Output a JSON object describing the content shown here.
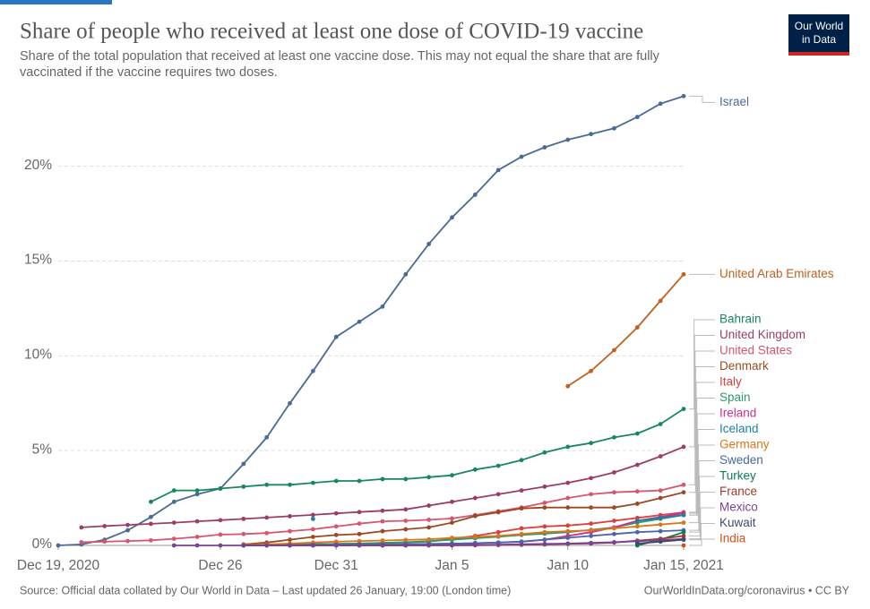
{
  "chart_data": {
    "type": "line",
    "title": "Share of people who received at least one dose of COVID-19 vaccine",
    "subtitle": [
      "Share of the total population that received at least one vaccine dose. This may not equal the share that are fully",
      "vaccinated if the vaccine requires two doses."
    ],
    "logo": [
      "Our World",
      "in Data"
    ],
    "source": "Source: Official data collated by Our World in Data – Last updated 26 January, 19:00 (London time)",
    "credit": "OurWorldInData.org/coronavirus • CC BY",
    "x": [
      "2020-12-19",
      "2020-12-20",
      "2020-12-21",
      "2020-12-22",
      "2020-12-23",
      "2020-12-24",
      "2020-12-25",
      "2020-12-26",
      "2020-12-27",
      "2020-12-28",
      "2020-12-29",
      "2020-12-30",
      "2020-12-31",
      "2021-01-01",
      "2021-01-02",
      "2021-01-03",
      "2021-01-04",
      "2021-01-05",
      "2021-01-06",
      "2021-01-07",
      "2021-01-08",
      "2021-01-09",
      "2021-01-10",
      "2021-01-11",
      "2021-01-12",
      "2021-01-13",
      "2021-01-14",
      "2021-01-15"
    ],
    "xlim": [
      "2020-12-19",
      "2021-01-15"
    ],
    "xticks": [
      {
        "value": "2020-12-19",
        "label": "Dec 19, 2020"
      },
      {
        "value": "2020-12-26",
        "label": "Dec 26"
      },
      {
        "value": "2020-12-31",
        "label": "Dec 31"
      },
      {
        "value": "2021-01-05",
        "label": "Jan 5"
      },
      {
        "value": "2021-01-10",
        "label": "Jan 10"
      },
      {
        "value": "2021-01-15",
        "label": "Jan 15, 2021"
      }
    ],
    "ylim": [
      0,
      24
    ],
    "yticks": [
      {
        "value": 0,
        "label": "0%"
      },
      {
        "value": 5,
        "label": "5%"
      },
      {
        "value": 10,
        "label": "10%"
      },
      {
        "value": 15,
        "label": "15%"
      },
      {
        "value": 20,
        "label": "20%"
      }
    ],
    "grid": true,
    "series": [
      {
        "name": "Israel",
        "color": "#4a6a96",
        "values": [
          0,
          0.05,
          0.3,
          0.8,
          1.5,
          2.3,
          2.7,
          3.0,
          4.3,
          5.7,
          7.5,
          9.2,
          11.0,
          11.8,
          12.6,
          14.3,
          15.9,
          17.3,
          18.5,
          19.8,
          20.5,
          21.0,
          21.4,
          21.7,
          22.0,
          22.6,
          23.3,
          23.7
        ]
      },
      {
        "name": "United Arab Emirates",
        "color": "#bf6120",
        "values": [
          null,
          null,
          null,
          null,
          null,
          null,
          null,
          null,
          null,
          null,
          null,
          null,
          null,
          null,
          null,
          null,
          null,
          null,
          null,
          null,
          null,
          null,
          8.4,
          9.2,
          10.3,
          11.5,
          12.9,
          14.3
        ]
      },
      {
        "name": "Bahrain",
        "color": "#18875f",
        "values": [
          null,
          null,
          null,
          null,
          2.3,
          2.9,
          2.9,
          3.0,
          3.1,
          3.2,
          3.2,
          3.3,
          3.4,
          3.4,
          3.5,
          3.5,
          3.6,
          3.7,
          4.0,
          4.2,
          4.5,
          4.9,
          5.2,
          5.4,
          5.7,
          5.9,
          6.4,
          7.2
        ]
      },
      {
        "name": "United Kingdom",
        "color": "#993f67",
        "values": [
          null,
          0.95,
          1.02,
          1.08,
          1.14,
          1.2,
          1.27,
          1.33,
          1.4,
          1.47,
          1.54,
          1.61,
          1.69,
          1.76,
          1.83,
          1.9,
          2.1,
          2.3,
          2.5,
          2.7,
          2.9,
          3.1,
          3.3,
          3.55,
          3.85,
          4.25,
          4.7,
          5.2
        ]
      },
      {
        "name": "United States",
        "color": "#d5566f",
        "values": [
          null,
          0.17,
          0.2,
          0.23,
          0.27,
          0.35,
          0.45,
          0.57,
          0.6,
          0.65,
          0.75,
          0.85,
          1.0,
          1.15,
          1.27,
          1.3,
          1.35,
          1.42,
          1.6,
          1.8,
          2.0,
          2.25,
          2.5,
          2.7,
          2.8,
          2.85,
          2.9,
          3.2
        ]
      },
      {
        "name": "Denmark",
        "color": "#9a4a22",
        "values": [
          null,
          null,
          null,
          null,
          null,
          null,
          null,
          null,
          0.05,
          0.15,
          0.3,
          0.45,
          0.55,
          0.6,
          0.75,
          0.85,
          0.95,
          1.2,
          1.55,
          1.75,
          1.95,
          2.0,
          2.0,
          2.0,
          2.0,
          2.2,
          2.5,
          2.8
        ]
      },
      {
        "name": "Italy",
        "color": "#d9413f",
        "values": [
          null,
          null,
          null,
          null,
          null,
          null,
          null,
          null,
          0.0,
          0.02,
          0.04,
          0.06,
          0.08,
          0.1,
          0.13,
          0.16,
          0.2,
          0.35,
          0.5,
          0.7,
          0.9,
          1.0,
          1.05,
          1.15,
          1.3,
          1.45,
          1.6,
          1.75
        ]
      },
      {
        "name": "Spain",
        "color": "#2a9a6a",
        "values": [
          null,
          null,
          null,
          null,
          null,
          null,
          null,
          null,
          0.0,
          0.02,
          0.04,
          0.06,
          0.08,
          0.1,
          0.13,
          0.17,
          0.22,
          0.3,
          0.38,
          0.46,
          0.55,
          0.62,
          0.7,
          0.82,
          0.95,
          1.2,
          1.4,
          1.6
        ]
      },
      {
        "name": "Ireland",
        "color": "#cc2e8e",
        "values": [
          null,
          null,
          null,
          null,
          null,
          null,
          null,
          null,
          null,
          null,
          0.0,
          0.01,
          0.02,
          0.03,
          0.04,
          0.05,
          0.07,
          0.09,
          0.12,
          0.15,
          0.2,
          0.3,
          0.5,
          0.7,
          0.95,
          1.3,
          1.5,
          1.7
        ]
      },
      {
        "name": "Iceland",
        "color": "#1f7fa0",
        "values": [
          null,
          null,
          null,
          null,
          null,
          null,
          null,
          null,
          null,
          null,
          null,
          1.4,
          null,
          null,
          null,
          null,
          null,
          null,
          null,
          null,
          null,
          null,
          null,
          null,
          null,
          1.3,
          1.45,
          1.6
        ]
      },
      {
        "name": "Germany",
        "color": "#d9761c",
        "values": [
          null,
          null,
          null,
          null,
          null,
          null,
          null,
          null,
          0.02,
          0.05,
          0.1,
          0.15,
          0.2,
          0.23,
          0.26,
          0.29,
          0.32,
          0.4,
          0.45,
          0.5,
          0.6,
          0.7,
          0.75,
          0.8,
          0.9,
          1.0,
          1.1,
          1.2
        ]
      },
      {
        "name": "Sweden",
        "color": "#4a66a6",
        "values": [
          null,
          null,
          null,
          null,
          null,
          null,
          null,
          null,
          0.0,
          0.01,
          0.02,
          0.03,
          0.04,
          0.05,
          0.06,
          0.07,
          0.08,
          0.1,
          0.12,
          0.15,
          0.2,
          0.3,
          0.4,
          0.5,
          0.6,
          0.7,
          0.75,
          0.8
        ]
      },
      {
        "name": "Turkey",
        "color": "#127a50",
        "values": [
          null,
          null,
          null,
          null,
          null,
          null,
          null,
          null,
          null,
          null,
          null,
          null,
          null,
          null,
          null,
          null,
          null,
          null,
          null,
          null,
          null,
          null,
          null,
          null,
          null,
          0.0,
          0.3,
          0.7
        ]
      },
      {
        "name": "France",
        "color": "#a23a2a",
        "values": [
          null,
          null,
          null,
          null,
          null,
          null,
          null,
          null,
          0,
          0,
          0,
          0,
          0,
          0,
          0,
          0,
          0,
          0,
          0.01,
          0.02,
          0.03,
          0.05,
          0.08,
          0.1,
          0.15,
          0.25,
          0.35,
          0.5
        ]
      },
      {
        "name": "Mexico",
        "color": "#7a4296",
        "values": [
          null,
          null,
          null,
          null,
          null,
          0,
          0,
          0,
          0,
          0,
          0,
          0,
          0,
          0,
          0,
          0,
          0.01,
          0.02,
          0.03,
          0.04,
          0.06,
          0.08,
          0.1,
          0.13,
          0.17,
          0.22,
          0.28,
          0.35
        ]
      },
      {
        "name": "Kuwait",
        "color": "#3b4b6a",
        "values": [
          null,
          null,
          null,
          null,
          null,
          null,
          null,
          null,
          null,
          null,
          null,
          null,
          null,
          null,
          null,
          null,
          null,
          null,
          null,
          null,
          null,
          null,
          null,
          null,
          null,
          0.1,
          0.2,
          0.3
        ]
      },
      {
        "name": "India",
        "color": "#d4501a",
        "values": [
          null,
          null,
          null,
          null,
          null,
          null,
          null,
          null,
          null,
          null,
          null,
          null,
          null,
          null,
          null,
          null,
          null,
          null,
          null,
          null,
          null,
          null,
          null,
          null,
          null,
          null,
          null,
          0.0
        ]
      }
    ]
  }
}
